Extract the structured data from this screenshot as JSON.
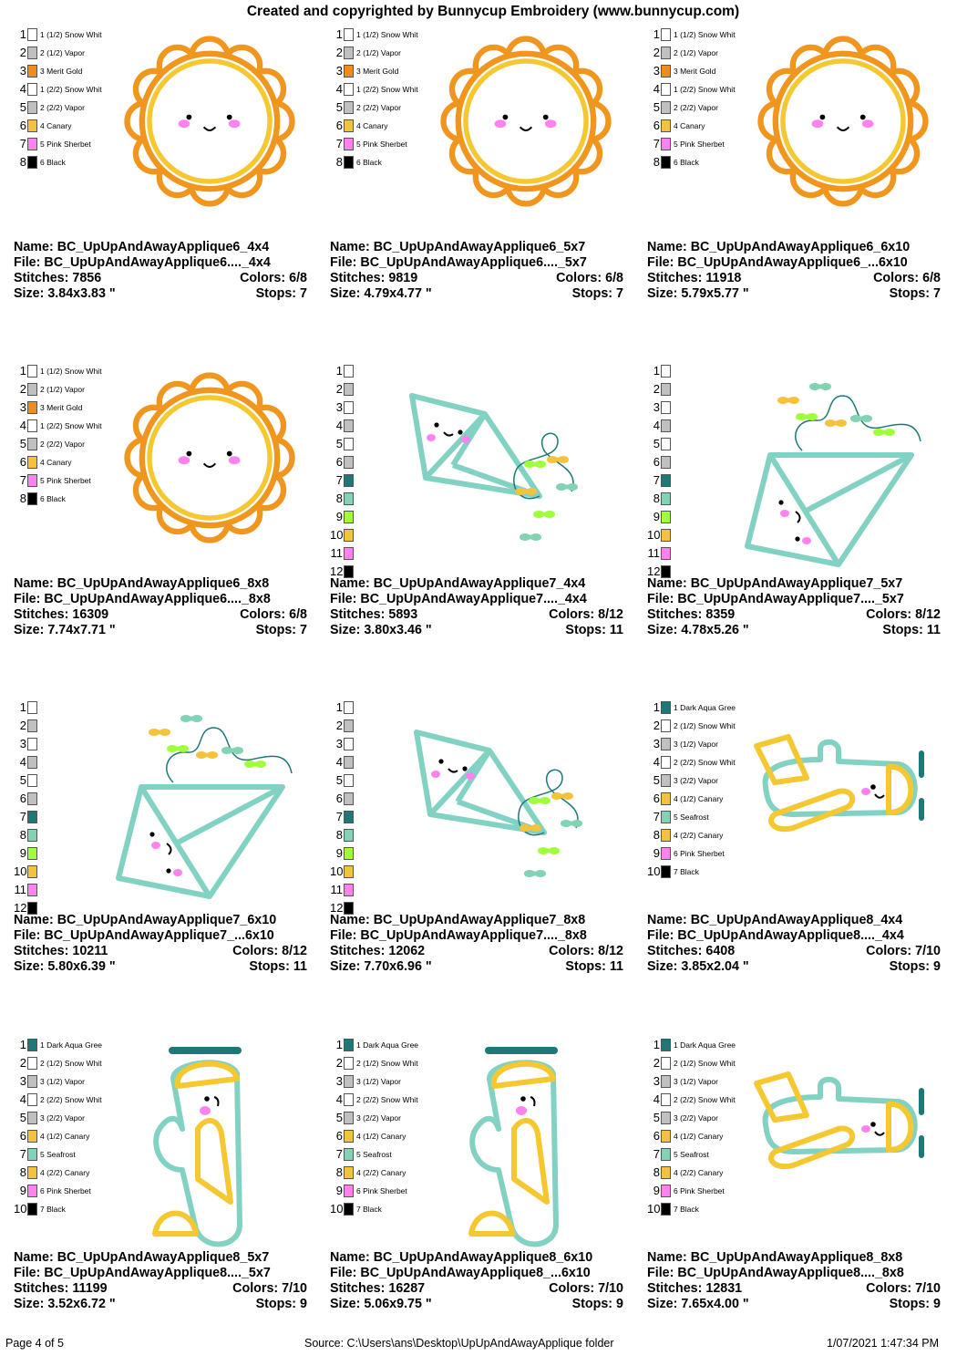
{
  "header": {
    "title": "Created and copyrighted by Bunnycup Embroidery (www.bunnycup.com)"
  },
  "labels": {
    "name": "Name:",
    "file": "File:",
    "stitches": "Stitches:",
    "colors": "Colors:",
    "size": "Size:",
    "stops": "Stops:"
  },
  "colors": {
    "white": "#ffffff",
    "grey": "#c0c0c0",
    "merit_gold": "#f08c1e",
    "canary": "#f5c23c",
    "pink": "#ff82f0",
    "black": "#000000",
    "dark_aqua": "#1e7878",
    "seafrost": "#82d2b4",
    "lime": "#a0ff3c",
    "outline_orange": "#f0961e",
    "fill_yellow": "#f5c832",
    "kite_teal": "#82d2c3"
  },
  "palettes": {
    "sun": [
      {
        "num": "1",
        "label": "1 (1/2) Snow Whit",
        "color": "white"
      },
      {
        "num": "2",
        "label": "2 (1/2) Vapor",
        "color": "grey"
      },
      {
        "num": "3",
        "label": "3 Merit Gold",
        "color": "merit_gold"
      },
      {
        "num": "4",
        "label": "1 (2/2) Snow Whit",
        "color": "white"
      },
      {
        "num": "5",
        "label": "2 (2/2) Vapor",
        "color": "grey"
      },
      {
        "num": "6",
        "label": "4 Canary",
        "color": "canary"
      },
      {
        "num": "7",
        "label": "5 Pink Sherbet",
        "color": "pink"
      },
      {
        "num": "8",
        "label": "6 Black",
        "color": "black"
      }
    ],
    "kite": [
      {
        "num": "1",
        "label": "",
        "color": "white"
      },
      {
        "num": "2",
        "label": "",
        "color": "grey"
      },
      {
        "num": "3",
        "label": "",
        "color": "white"
      },
      {
        "num": "4",
        "label": "",
        "color": "grey"
      },
      {
        "num": "5",
        "label": "",
        "color": "white"
      },
      {
        "num": "6",
        "label": "",
        "color": "grey"
      },
      {
        "num": "7",
        "label": "",
        "color": "dark_aqua"
      },
      {
        "num": "8",
        "label": "",
        "color": "seafrost"
      },
      {
        "num": "9",
        "label": "",
        "color": "lime"
      },
      {
        "num": "10",
        "label": "",
        "color": "canary"
      },
      {
        "num": "11",
        "label": "",
        "color": "pink"
      },
      {
        "num": "12",
        "label": "",
        "color": "black"
      }
    ],
    "plane": [
      {
        "num": "1",
        "label": "1 Dark Aqua Gree",
        "color": "dark_aqua"
      },
      {
        "num": "2",
        "label": "2 (1/2) Snow Whit",
        "color": "white"
      },
      {
        "num": "3",
        "label": "3 (1/2) Vapor",
        "color": "grey"
      },
      {
        "num": "4",
        "label": "2 (2/2) Snow Whit",
        "color": "white"
      },
      {
        "num": "5",
        "label": "3 (2/2) Vapor",
        "color": "grey"
      },
      {
        "num": "6",
        "label": "4 (1/2) Canary",
        "color": "canary"
      },
      {
        "num": "7",
        "label": "5 Seafrost",
        "color": "seafrost"
      },
      {
        "num": "8",
        "label": "4 (2/2) Canary",
        "color": "canary"
      },
      {
        "num": "9",
        "label": "6 Pink Sherbet",
        "color": "pink"
      },
      {
        "num": "10",
        "label": "7 Black",
        "color": "black"
      }
    ]
  },
  "designs": [
    {
      "name": "BC_UpUpAndAwayApplique6_4x4",
      "file": "BC_UpUpAndAwayApplique6...._4x4",
      "stitches": "7856",
      "colors": "6/8",
      "size": "3.84x3.83 \"",
      "stops": "7"
    },
    {
      "name": "BC_UpUpAndAwayApplique6_5x7",
      "file": "BC_UpUpAndAwayApplique6...._5x7",
      "stitches": "9819",
      "colors": "6/8",
      "size": "4.79x4.77 \"",
      "stops": "7"
    },
    {
      "name": "BC_UpUpAndAwayApplique6_6x10",
      "file": "BC_UpUpAndAwayApplique6_...6x10",
      "stitches": "11918",
      "colors": "6/8",
      "size": "5.79x5.77 \"",
      "stops": "7"
    },
    {
      "name": "BC_UpUpAndAwayApplique6_8x8",
      "file": "BC_UpUpAndAwayApplique6...._8x8",
      "stitches": "16309",
      "colors": "6/8",
      "size": "7.74x7.71 \"",
      "stops": "7"
    },
    {
      "name": "BC_UpUpAndAwayApplique7_4x4",
      "file": "BC_UpUpAndAwayApplique7...._4x4",
      "stitches": "5893",
      "colors": "8/12",
      "size": "3.80x3.46 \"",
      "stops": "11"
    },
    {
      "name": "BC_UpUpAndAwayApplique7_5x7",
      "file": "BC_UpUpAndAwayApplique7...._5x7",
      "stitches": "8359",
      "colors": "8/12",
      "size": "4.78x5.26 \"",
      "stops": "11"
    },
    {
      "name": "BC_UpUpAndAwayApplique7_6x10",
      "file": "BC_UpUpAndAwayApplique7_...6x10",
      "stitches": "10211",
      "colors": "8/12",
      "size": "5.80x6.39 \"",
      "stops": "11"
    },
    {
      "name": "BC_UpUpAndAwayApplique7_8x8",
      "file": "BC_UpUpAndAwayApplique7...._8x8",
      "stitches": "12062",
      "colors": "8/12",
      "size": "7.70x6.96 \"",
      "stops": "11"
    },
    {
      "name": "BC_UpUpAndAwayApplique8_4x4",
      "file": "BC_UpUpAndAwayApplique8...._4x4",
      "stitches": "6408",
      "colors": "7/10",
      "size": "3.85x2.04 \"",
      "stops": "9"
    },
    {
      "name": "BC_UpUpAndAwayApplique8_5x7",
      "file": "BC_UpUpAndAwayApplique8...._5x7",
      "stitches": "11199",
      "colors": "7/10",
      "size": "3.52x6.72 \"",
      "stops": "9"
    },
    {
      "name": "BC_UpUpAndAwayApplique8_6x10",
      "file": "BC_UpUpAndAwayApplique8_...6x10",
      "stitches": "16287",
      "colors": "7/10",
      "size": "5.06x9.75 \"",
      "stops": "9"
    },
    {
      "name": "BC_UpUpAndAwayApplique8_8x8",
      "file": "BC_UpUpAndAwayApplique8...._8x8",
      "stitches": "12831",
      "colors": "7/10",
      "size": "7.65x4.00 \"",
      "stops": "9"
    }
  ],
  "footer": {
    "page": "Page 4 of 5",
    "source": "Source: C:\\Users\\ans\\Desktop\\UpUpAndAwayApplique folder",
    "datetime": "1/07/2021 1:47:34 PM"
  }
}
